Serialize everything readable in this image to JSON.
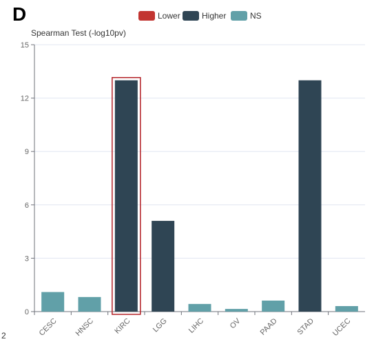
{
  "panel": {
    "letter": "D",
    "corner_mark": "2"
  },
  "legend": [
    {
      "label": "Lower",
      "color": "#c23531"
    },
    {
      "label": "Higher",
      "color": "#2f4554"
    },
    {
      "label": "NS",
      "color": "#61a0a8"
    }
  ],
  "chart_data": {
    "type": "bar",
    "ylabel": "Spearman Test (-log10pv)",
    "ylim": [
      0,
      15
    ],
    "yticks": [
      0,
      3,
      6,
      9,
      12,
      15
    ],
    "grid": true,
    "legend_position": "top-center",
    "categories": [
      "CESC",
      "HNSC",
      "KIRC",
      "LGG",
      "LIHC",
      "OV",
      "PAAD",
      "STAD",
      "UCEC"
    ],
    "values": [
      1.1,
      0.82,
      13.0,
      5.1,
      0.43,
      0.15,
      0.62,
      13.0,
      0.31
    ],
    "groups": [
      "NS",
      "NS",
      "Higher",
      "Higher",
      "NS",
      "NS",
      "NS",
      "Higher",
      "NS"
    ],
    "highlighted_category": "KIRC",
    "highlight_color": "#b21f24"
  }
}
